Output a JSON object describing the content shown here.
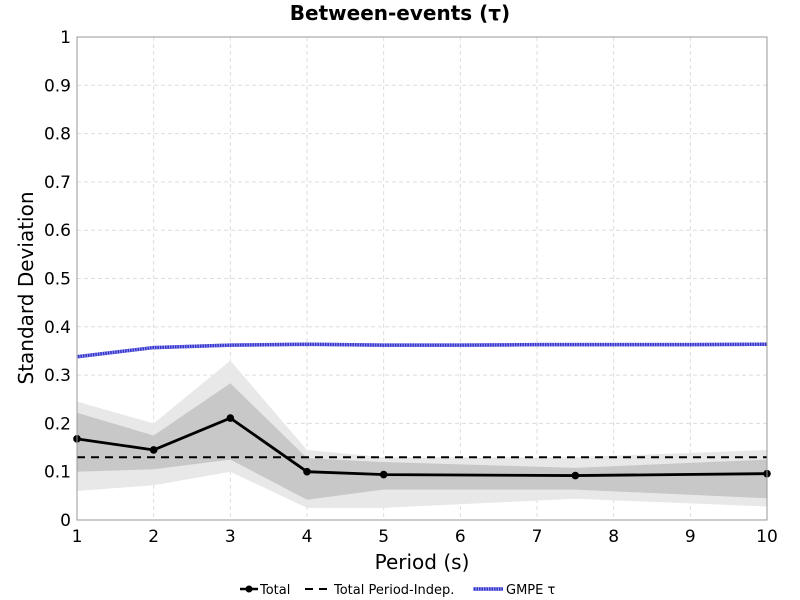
{
  "chart_data": {
    "type": "line",
    "title": "Between-events (τ)",
    "xlabel": "Period (s)",
    "ylabel": "Standard Deviation",
    "xlim": [
      1,
      10
    ],
    "ylim": [
      0,
      1
    ],
    "x_ticks": [
      "1",
      "2",
      "3",
      "4",
      "5",
      "6",
      "7",
      "8",
      "9",
      "10"
    ],
    "y_ticks": [
      "0",
      "0.1",
      "0.2",
      "0.3",
      "0.4",
      "0.5",
      "0.6",
      "0.7",
      "0.8",
      "0.9",
      "1"
    ],
    "grid": true,
    "legend_position": "bottom-center",
    "x": [
      1,
      2,
      3,
      4,
      5,
      7.5,
      10
    ],
    "series": [
      {
        "name": "Total",
        "style": "solid-with-markers",
        "color": "#000000",
        "values": [
          0.168,
          0.145,
          0.211,
          0.1,
          0.094,
          0.092,
          0.096
        ]
      },
      {
        "name": "Total Period-Indep.",
        "style": "dashed",
        "color": "#000000",
        "values": [
          0.13,
          0.13,
          0.13,
          0.13,
          0.13,
          0.13,
          0.13
        ]
      },
      {
        "name": "GMPE τ",
        "style": "dotted-band",
        "color": "#3333cc",
        "x": [
          1,
          2,
          3,
          4,
          5,
          6,
          7,
          8,
          9,
          10
        ],
        "values": [
          0.338,
          0.357,
          0.362,
          0.364,
          0.362,
          0.362,
          0.363,
          0.363,
          0.363,
          0.364
        ]
      }
    ],
    "bands": [
      {
        "color": "#e8e8e8",
        "lower": [
          0.06,
          0.072,
          0.1,
          0.025,
          0.025,
          0.044,
          0.028
        ],
        "upper": [
          0.245,
          0.2,
          0.33,
          0.145,
          0.13,
          0.13,
          0.145
        ]
      },
      {
        "color": "#c8c8c8",
        "lower": [
          0.1,
          0.105,
          0.125,
          0.042,
          0.063,
          0.063,
          0.045
        ],
        "upper": [
          0.222,
          0.175,
          0.283,
          0.128,
          0.12,
          0.108,
          0.125
        ]
      }
    ]
  }
}
